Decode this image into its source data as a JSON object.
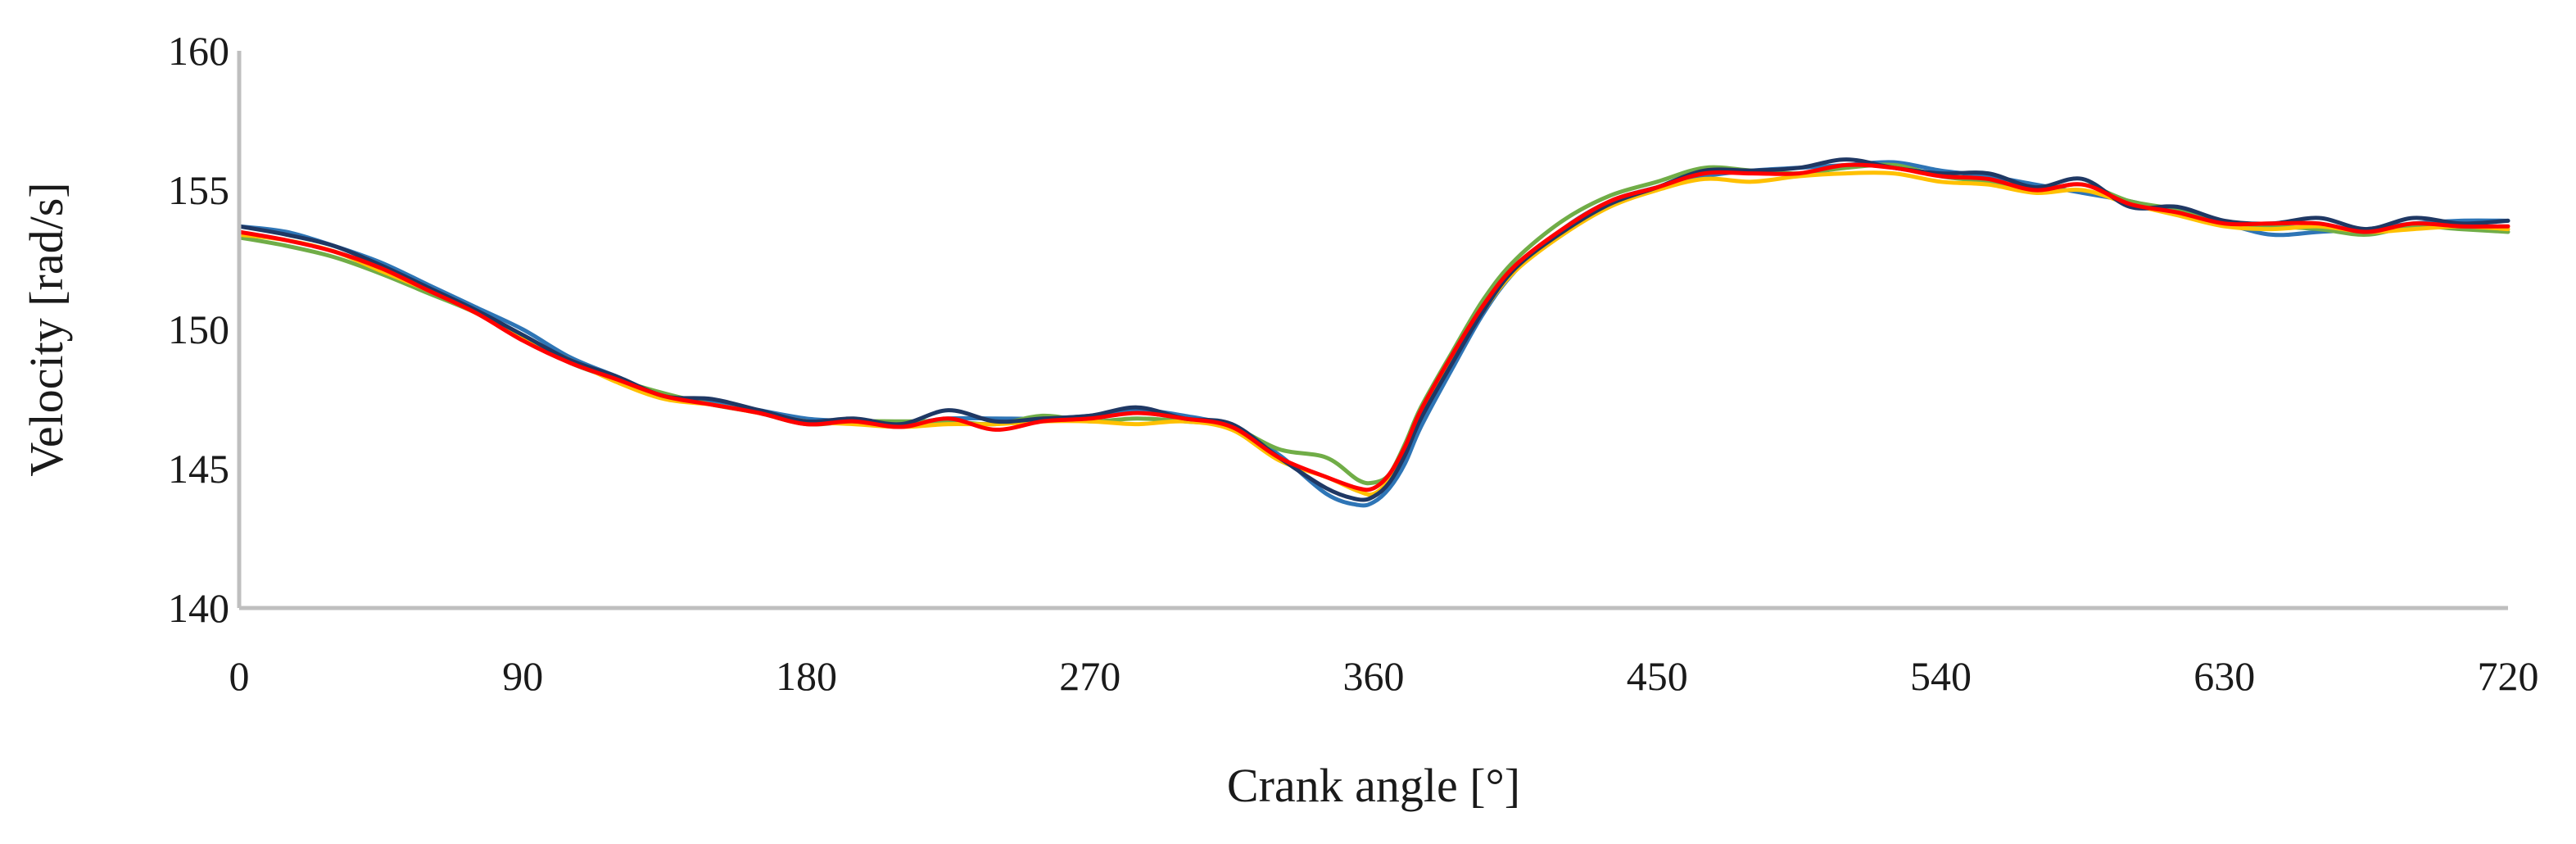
{
  "chart_data": {
    "type": "line",
    "title": "",
    "xlabel": "Crank angle [°]",
    "ylabel": "Velocity [rad/s]",
    "xlim": [
      0,
      720
    ],
    "ylim": [
      140,
      160
    ],
    "xticks": [
      0,
      90,
      180,
      270,
      360,
      450,
      540,
      630,
      720
    ],
    "yticks": [
      140,
      145,
      150,
      155,
      160
    ],
    "grid": false,
    "legend": "none",
    "x": [
      0,
      15,
      30,
      45,
      60,
      75,
      90,
      105,
      120,
      135,
      150,
      165,
      180,
      195,
      210,
      225,
      240,
      255,
      270,
      285,
      300,
      315,
      330,
      345,
      355,
      360,
      365,
      370,
      375,
      385,
      395,
      405,
      420,
      435,
      450,
      465,
      480,
      495,
      510,
      525,
      540,
      555,
      570,
      585,
      600,
      615,
      630,
      645,
      660,
      675,
      690,
      705,
      720
    ],
    "series": [
      {
        "color": "#2e75b6",
        "values": [
          153.7,
          153.5,
          153.0,
          152.4,
          151.6,
          150.8,
          150.0,
          149.0,
          148.3,
          147.6,
          147.4,
          147.1,
          146.8,
          146.7,
          146.6,
          146.8,
          146.8,
          146.8,
          146.9,
          147.1,
          146.9,
          146.5,
          145.5,
          144.1,
          143.7,
          143.8,
          144.3,
          145.2,
          146.5,
          148.6,
          150.6,
          152.1,
          153.6,
          154.6,
          155.1,
          155.5,
          155.7,
          155.8,
          155.9,
          156.0,
          155.7,
          155.5,
          155.2,
          154.9,
          154.6,
          154.2,
          153.8,
          153.4,
          153.5,
          153.6,
          153.8,
          153.9,
          153.9
        ]
      },
      {
        "color": "#70ad47",
        "values": [
          153.3,
          153.0,
          152.6,
          152.0,
          151.3,
          150.6,
          149.7,
          148.8,
          148.2,
          147.7,
          147.3,
          147.0,
          146.6,
          146.7,
          146.7,
          146.7,
          146.6,
          146.9,
          146.7,
          146.8,
          146.7,
          146.5,
          145.7,
          145.4,
          144.6,
          144.5,
          144.8,
          145.9,
          147.2,
          149.2,
          151.1,
          152.5,
          153.9,
          154.8,
          155.3,
          155.8,
          155.7,
          155.6,
          155.8,
          155.9,
          155.5,
          155.3,
          155.0,
          155.2,
          154.6,
          154.3,
          153.8,
          153.7,
          153.6,
          153.4,
          153.7,
          153.6,
          153.5
        ]
      },
      {
        "color": "#ffc000",
        "values": [
          153.4,
          153.2,
          152.8,
          152.1,
          151.4,
          150.6,
          149.7,
          148.9,
          148.1,
          147.5,
          147.3,
          147.0,
          146.7,
          146.6,
          146.5,
          146.6,
          146.6,
          146.7,
          146.7,
          146.6,
          146.7,
          146.4,
          145.3,
          144.7,
          144.2,
          144.1,
          144.6,
          145.6,
          146.9,
          148.9,
          150.7,
          152.1,
          153.4,
          154.4,
          155.0,
          155.4,
          155.3,
          155.5,
          155.6,
          155.6,
          155.3,
          155.2,
          154.9,
          155.0,
          154.5,
          154.1,
          153.7,
          153.6,
          153.7,
          153.5,
          153.6,
          153.7,
          153.6
        ]
      },
      {
        "color": "#1f3864",
        "values": [
          153.7,
          153.4,
          153.0,
          152.3,
          151.5,
          150.7,
          149.8,
          148.9,
          148.3,
          147.6,
          147.5,
          147.1,
          146.7,
          146.8,
          146.6,
          147.1,
          146.7,
          146.8,
          146.9,
          147.2,
          146.8,
          146.6,
          145.4,
          144.3,
          143.9,
          144.0,
          144.5,
          145.5,
          146.8,
          148.8,
          150.7,
          152.2,
          153.5,
          154.5,
          155.1,
          155.7,
          155.7,
          155.8,
          156.1,
          155.8,
          155.6,
          155.6,
          155.1,
          155.4,
          154.4,
          154.4,
          153.9,
          153.8,
          154.0,
          153.6,
          154.0,
          153.8,
          153.9
        ]
      },
      {
        "color": "#ff0000",
        "values": [
          153.5,
          153.2,
          152.8,
          152.2,
          151.4,
          150.6,
          149.6,
          148.8,
          148.2,
          147.6,
          147.3,
          147.0,
          146.6,
          146.7,
          146.5,
          146.8,
          146.4,
          146.7,
          146.8,
          147.0,
          146.8,
          146.5,
          145.4,
          144.7,
          144.3,
          144.3,
          144.8,
          145.8,
          147.1,
          149.1,
          150.9,
          152.3,
          153.6,
          154.6,
          155.1,
          155.6,
          155.6,
          155.6,
          155.9,
          155.8,
          155.5,
          155.4,
          155.0,
          155.2,
          154.5,
          154.2,
          153.8,
          153.8,
          153.8,
          153.5,
          153.8,
          153.7,
          153.7
        ]
      }
    ]
  }
}
